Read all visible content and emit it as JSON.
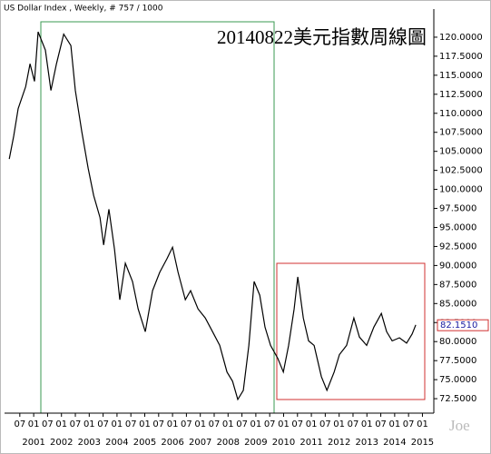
{
  "chart_data": {
    "type": "line",
    "title": "20140822美元指數周線圖",
    "subtitle": "US Dollar Index , Weekly, # 757 / 1000",
    "watermark": "Joe",
    "color": "#000000",
    "x": [
      2000.12,
      2000.28,
      2000.44,
      2000.71,
      2000.87,
      2001.03,
      2001.16,
      2001.42,
      2001.62,
      2001.82,
      2002.08,
      2002.34,
      2002.5,
      2002.73,
      2002.96,
      2003.16,
      2003.39,
      2003.52,
      2003.71,
      2003.91,
      2004.1,
      2004.3,
      2004.56,
      2004.76,
      2005.02,
      2005.28,
      2005.54,
      2005.8,
      2006.0,
      2006.2,
      2006.46,
      2006.65,
      2006.92,
      2007.18,
      2007.44,
      2007.7,
      2007.96,
      2008.16,
      2008.35,
      2008.55,
      2008.75,
      2008.94,
      2009.14,
      2009.33,
      2009.53,
      2009.79,
      2009.99,
      2010.18,
      2010.38,
      2010.51,
      2010.71,
      2010.9,
      2011.1,
      2011.36,
      2011.56,
      2011.82,
      2012.01,
      2012.27,
      2012.53,
      2012.73,
      2012.99,
      2013.25,
      2013.52,
      2013.71,
      2013.91,
      2014.17,
      2014.43,
      2014.63,
      2014.76
    ],
    "values": [
      104.0,
      107.0,
      110.6,
      113.5,
      116.5,
      114.2,
      120.7,
      118.3,
      113.0,
      116.5,
      120.4,
      118.9,
      113.0,
      107.6,
      102.8,
      99.2,
      96.3,
      92.7,
      97.4,
      92.1,
      85.5,
      90.3,
      87.9,
      84.3,
      81.3,
      86.7,
      89.1,
      90.9,
      92.4,
      89.1,
      85.5,
      86.7,
      84.3,
      83.1,
      81.3,
      79.5,
      76.0,
      74.8,
      72.4,
      73.6,
      79.5,
      87.9,
      86.1,
      81.9,
      79.5,
      77.8,
      76.0,
      79.5,
      84.3,
      88.5,
      83.1,
      80.1,
      79.5,
      75.4,
      73.6,
      76.0,
      78.3,
      79.5,
      83.1,
      80.6,
      79.5,
      81.9,
      83.7,
      81.3,
      80.1,
      80.5,
      79.8,
      81.0,
      82.2
    ],
    "last_price": {
      "value": 82.151,
      "label": "82.1510"
    },
    "xlim": [
      1999.95,
      2015.41
    ],
    "ylim": [
      70.6,
      122.5
    ],
    "yticks": [
      {
        "value": 72.5,
        "label": "72.5000"
      },
      {
        "value": 75,
        "label": "75.0000"
      },
      {
        "value": 77.5,
        "label": "77.5000"
      },
      {
        "value": 80,
        "label": "80.0000"
      },
      {
        "value": 82.5,
        "label": "82.5000"
      },
      {
        "value": 85,
        "label": "85.0000"
      },
      {
        "value": 87.5,
        "label": "87.5000"
      },
      {
        "value": 90,
        "label": "90.0000"
      },
      {
        "value": 92.5,
        "label": "92.5000"
      },
      {
        "value": 95,
        "label": "95.0000"
      },
      {
        "value": 97.5,
        "label": "97.5000"
      },
      {
        "value": 100,
        "label": "100.0000"
      },
      {
        "value": 102.5,
        "label": "102.5000"
      },
      {
        "value": 105,
        "label": "105.0000"
      },
      {
        "value": 107.5,
        "label": "107.5000"
      },
      {
        "value": 110,
        "label": "110.0000"
      },
      {
        "value": 112.5,
        "label": "112.5000"
      },
      {
        "value": 115,
        "label": "115.0000"
      },
      {
        "value": 117.5,
        "label": "117.5000"
      },
      {
        "value": 120,
        "label": "120.0000"
      }
    ],
    "xticks": [
      {
        "value": 2000.5,
        "label": "07"
      },
      {
        "value": 2001,
        "label": "01"
      },
      {
        "value": 2001.5,
        "label": "07"
      },
      {
        "value": 2002,
        "label": "01"
      },
      {
        "value": 2002.5,
        "label": "07"
      },
      {
        "value": 2003,
        "label": "01"
      },
      {
        "value": 2003.5,
        "label": "07"
      },
      {
        "value": 2004,
        "label": "01"
      },
      {
        "value": 2004.5,
        "label": "07"
      },
      {
        "value": 2005,
        "label": "01"
      },
      {
        "value": 2005.5,
        "label": "07"
      },
      {
        "value": 2006,
        "label": "01"
      },
      {
        "value": 2006.5,
        "label": "07"
      },
      {
        "value": 2007,
        "label": "01"
      },
      {
        "value": 2007.5,
        "label": "07"
      },
      {
        "value": 2008,
        "label": "01"
      },
      {
        "value": 2008.5,
        "label": "07"
      },
      {
        "value": 2009,
        "label": "01"
      },
      {
        "value": 2009.5,
        "label": "07"
      },
      {
        "value": 2010,
        "label": "01"
      },
      {
        "value": 2010.5,
        "label": "07"
      },
      {
        "value": 2011,
        "label": "01"
      },
      {
        "value": 2011.5,
        "label": "07"
      },
      {
        "value": 2012,
        "label": "01"
      },
      {
        "value": 2012.5,
        "label": "07"
      },
      {
        "value": 2013,
        "label": "01"
      },
      {
        "value": 2013.5,
        "label": "07"
      },
      {
        "value": 2014,
        "label": "01"
      },
      {
        "value": 2014.5,
        "label": "07"
      },
      {
        "value": 2015,
        "label": "01"
      }
    ],
    "year_ticks": [
      2001,
      2002,
      2003,
      2004,
      2005,
      2006,
      2007,
      2008,
      2009,
      2010,
      2011,
      2012,
      2013,
      2014,
      2015
    ]
  }
}
